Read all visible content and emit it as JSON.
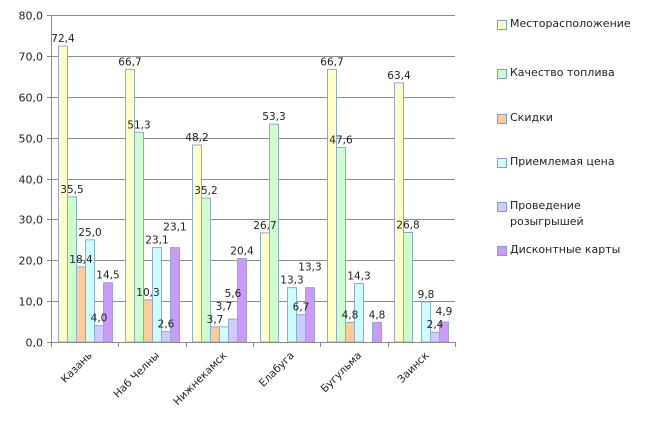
{
  "chart_data": {
    "type": "bar",
    "title": "",
    "xlabel": "",
    "ylabel": "",
    "ylim": [
      0,
      80
    ],
    "yticks": [
      "0,0",
      "10,0",
      "20,0",
      "30,0",
      "40,0",
      "50,0",
      "60,0",
      "70,0",
      "80,0"
    ],
    "ytick_values": [
      0,
      10,
      20,
      30,
      40,
      50,
      60,
      70,
      80
    ],
    "grid": true,
    "legend_position": "right",
    "categories": [
      "Казань",
      "Наб Челны",
      "Нижнекамск",
      "Елабуга",
      "Бугульма",
      "Заинск"
    ],
    "series": [
      {
        "name": "Месторасположение",
        "color": "#ffffc8",
        "values": [
          72.4,
          66.7,
          48.2,
          26.7,
          66.7,
          63.4
        ],
        "labels": [
          "72,4",
          "66,7",
          "48,2",
          "26,7",
          "66,7",
          "63,4"
        ]
      },
      {
        "name": "Качество топлива",
        "color": "#ccffcc",
        "values": [
          35.5,
          51.3,
          35.2,
          53.3,
          47.6,
          26.8
        ],
        "labels": [
          "35,5",
          "51,3",
          "35,2",
          "53,3",
          "47,6",
          "26,8"
        ]
      },
      {
        "name": "Скидки",
        "color": "#ffcc99",
        "values": [
          18.4,
          10.3,
          3.7,
          0,
          4.8,
          0
        ],
        "labels": [
          "18,4",
          "10,3",
          "3,7",
          "",
          "4,8",
          ""
        ]
      },
      {
        "name": "Приемлемая цена",
        "color": "#ccffff",
        "values": [
          25.0,
          23.1,
          3.7,
          13.3,
          14.3,
          9.8
        ],
        "labels": [
          "25,0",
          "23,1",
          "3,7",
          "13,3",
          "14,3",
          "9,8"
        ]
      },
      {
        "name": "Проведение розыгрышей",
        "color": "#ccccff",
        "values": [
          4.0,
          2.6,
          5.6,
          6.7,
          0,
          2.4
        ],
        "labels": [
          "4,0",
          "2,6",
          "5,6",
          "6,7",
          "",
          "2,4"
        ]
      },
      {
        "name": "Дисконтные карты",
        "color": "#cc99ff",
        "values": [
          14.5,
          23.1,
          20.4,
          13.3,
          4.8,
          4.9
        ],
        "labels": [
          "14,5",
          "23,1",
          "20,4",
          "13,3",
          "4,8",
          "4,9"
        ]
      }
    ]
  },
  "legend": {
    "items": [
      {
        "label": "Месторасположение"
      },
      {
        "label": "Качество топлива"
      },
      {
        "label": "Скидки"
      },
      {
        "label": "Приемлемая цена"
      },
      {
        "label": "Проведение розыгрышей"
      },
      {
        "label": "Дисконтные карты"
      }
    ]
  }
}
